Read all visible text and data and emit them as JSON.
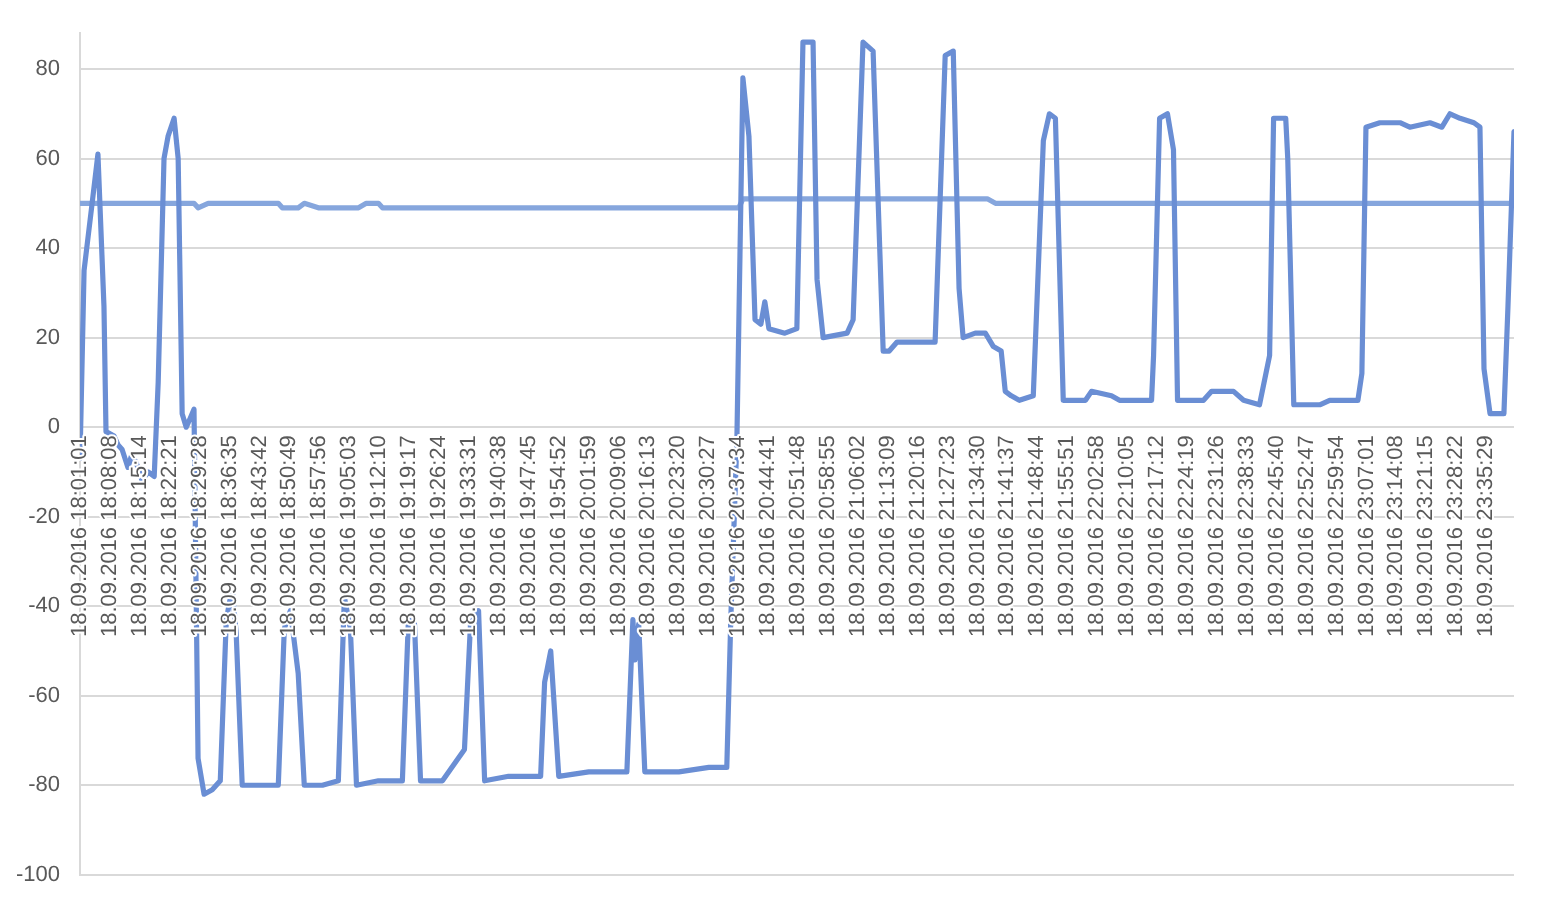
{
  "chart_data": {
    "type": "line",
    "series": [
      {
        "color": "#6a8ed4",
        "x": [
          "2016-09-18T18:01:01",
          "2016-09-18T18:01:59",
          "2016-09-18T18:03:54",
          "2016-09-18T18:05:17",
          "2016-09-18T18:06:43",
          "2016-09-18T18:07:12",
          "2016-09-18T18:09:07",
          "2016-09-18T18:10:05",
          "2016-09-18T18:11:02",
          "2016-09-18T18:12:25",
          "2016-09-18T18:13:23",
          "2016-09-18T18:14:49",
          "2016-09-18T18:15:47",
          "2016-09-18T18:17:13",
          "2016-09-18T18:18:40",
          "2016-09-18T18:19:37",
          "2016-09-18T18:21:00",
          "2016-09-18T18:21:58",
          "2016-09-18T18:23:24",
          "2016-09-18T18:24:22",
          "2016-09-18T18:25:19",
          "2016-09-18T18:26:17",
          "2016-09-18T18:27:14",
          "2016-09-18T18:28:08",
          "2016-09-18T18:29:06",
          "2016-09-18T18:30:32",
          "2016-09-18T18:32:28",
          "2016-09-18T18:34:23",
          "2016-09-18T18:35:49",
          "2016-09-18T18:37:12",
          "2016-09-18T18:38:10",
          "2016-09-18T18:39:36",
          "2016-09-18T18:43:26",
          "2016-09-18T18:48:11",
          "2016-09-18T18:49:37",
          "2016-09-18T18:51:04",
          "2016-09-18T18:52:55",
          "2016-09-18T18:54:22",
          "2016-09-18T18:58:41",
          "2016-09-18T19:02:28",
          "2016-09-18T19:03:54",
          "2016-09-18T19:05:20",
          "2016-09-18T19:06:47",
          "2016-09-18T19:12:00",
          "2016-09-18T19:17:42",
          "2016-09-18T19:19:08",
          "2016-09-18T19:20:35",
          "2016-09-18T19:22:01",
          "2016-09-18T19:27:14",
          "2016-09-18T19:32:28",
          "2016-09-18T19:33:54",
          "2016-09-18T19:35:49",
          "2016-09-18T19:37:16",
          "2016-09-18T19:42:58",
          "2016-09-18T19:50:35",
          "2016-09-18T19:51:32",
          "2016-09-18T19:52:59",
          "2016-09-18T19:54:54",
          "2016-09-18T20:02:02",
          "2016-09-18T20:11:06",
          "2016-09-18T20:12:32",
          "2016-09-18T20:13:01",
          "2016-09-18T20:13:55",
          "2016-09-18T20:15:22",
          "2016-09-18T20:23:28",
          "2016-09-18T20:30:36",
          "2016-09-18T20:34:52",
          "2016-09-18T20:35:49",
          "2016-09-18T20:37:16",
          "2016-09-18T20:38:42",
          "2016-09-18T20:40:08",
          "2016-09-18T20:41:35",
          "2016-09-18T20:42:58",
          "2016-09-18T20:43:55",
          "2016-09-18T20:44:53",
          "2016-09-18T20:48:40",
          "2016-09-18T20:51:32",
          "2016-09-18T20:52:59",
          "2016-09-18T20:55:23",
          "2016-09-18T20:56:20",
          "2016-09-18T20:57:47",
          "2016-09-18T21:03:29",
          "2016-09-18T21:04:55",
          "2016-09-18T21:07:16",
          "2016-09-18T21:09:40",
          "2016-09-18T21:12:04",
          "2016-09-18T21:13:30",
          "2016-09-18T21:15:22",
          "2016-09-18T21:24:25",
          "2016-09-18T21:26:49",
          "2016-09-18T21:28:44",
          "2016-09-18T21:30:07",
          "2016-09-18T21:31:05",
          "2016-09-18T21:33:58",
          "2016-09-18T21:36:22",
          "2016-09-18T21:38:17",
          "2016-09-18T21:40:08",
          "2016-09-18T21:41:06",
          "2016-09-18T21:42:32",
          "2016-09-18T21:44:28",
          "2016-09-18T21:47:46",
          "2016-09-18T21:50:10",
          "2016-09-18T21:51:36",
          "2016-09-18T21:53:02",
          "2016-09-18T21:54:54",
          "2016-09-18T22:00:11",
          "2016-09-18T22:01:37",
          "2016-09-18T22:06:22",
          "2016-09-18T22:08:17",
          "2016-09-18T22:15:54",
          "2016-09-18T22:16:23",
          "2016-09-18T22:17:49",
          "2016-09-18T22:19:41",
          "2016-09-18T22:21:07",
          "2016-09-18T22:22:05",
          "2016-09-18T22:28:16",
          "2016-09-18T22:30:11",
          "2016-09-18T22:35:24",
          "2016-09-18T22:37:48",
          "2016-09-18T22:41:35",
          "2016-09-18T22:43:59",
          "2016-09-18T22:44:56",
          "2016-09-18T22:47:49",
          "2016-09-18T22:48:18",
          "2016-09-18T22:49:44",
          "2016-09-18T22:55:55",
          "2016-09-18T22:58:16",
          "2016-09-18T23:04:59",
          "2016-09-18T23:05:56",
          "2016-09-18T23:06:54",
          "2016-09-18T23:10:12",
          "2016-09-18T23:15:00",
          "2016-09-18T23:17:20",
          "2016-09-18T23:22:08",
          "2016-09-18T23:24:58",
          "2016-09-18T23:26:53",
          "2016-09-18T23:29:17",
          "2016-09-18T23:32:35",
          "2016-09-18T23:34:01",
          "2016-09-18T23:34:59",
          "2016-09-18T23:36:25",
          "2016-09-18T23:39:43",
          "2016-09-18T23:40:41",
          "2016-09-18T23:42:07"
        ],
        "values": [
          -7,
          35,
          50,
          61,
          27,
          -1,
          -2,
          -4,
          -5,
          -9,
          -6,
          -9,
          -12,
          -10,
          -11,
          10,
          60,
          65,
          69,
          60,
          3,
          0,
          2,
          4,
          -74,
          -82,
          -81,
          -79,
          -43,
          -36,
          -46,
          -80,
          -80,
          -80,
          -45,
          -41,
          -55,
          -80,
          -80,
          -79,
          -38,
          -45,
          -80,
          -79,
          -79,
          -43,
          -44,
          -79,
          -79,
          -72,
          -44,
          -41,
          -79,
          -78,
          -78,
          -57,
          -50,
          -78,
          -77,
          -77,
          -43,
          -52,
          -44,
          -77,
          -77,
          -76,
          -76,
          -43,
          -3,
          78,
          65,
          24,
          23,
          28,
          22,
          21,
          22,
          86,
          86,
          33,
          20,
          21,
          24,
          86,
          84,
          17,
          17,
          19,
          19,
          83,
          84,
          31,
          20,
          21,
          21,
          18,
          17,
          8,
          7,
          6,
          7,
          64,
          70,
          69,
          6,
          6,
          8,
          7,
          6,
          6,
          16,
          69,
          70,
          62,
          6,
          6,
          8,
          8,
          6,
          5,
          16,
          69,
          69,
          60,
          5,
          5,
          6,
          6,
          12,
          67,
          68,
          68,
          67,
          68,
          67,
          70,
          69,
          68,
          67,
          13,
          3,
          3,
          27,
          66
        ]
      },
      {
        "color": "#86a6dd",
        "x": [
          "2016-09-18T18:01:01",
          "2016-09-18T18:28:08",
          "2016-09-18T18:29:06",
          "2016-09-18T18:31:30",
          "2016-09-18T18:48:11",
          "2016-09-18T18:49:08",
          "2016-09-18T18:52:55",
          "2016-09-18T18:54:22",
          "2016-09-18T18:57:43",
          "2016-09-18T19:07:16",
          "2016-09-18T19:09:07",
          "2016-09-18T19:12:00",
          "2016-09-18T19:12:58",
          "2016-09-18T20:37:44",
          "2016-09-18T20:38:42",
          "2016-09-18T21:36:50",
          "2016-09-18T21:38:46",
          "2016-09-18T23:42:07"
        ],
        "values": [
          50,
          50,
          49,
          50,
          50,
          49,
          49,
          50,
          49,
          49,
          50,
          50,
          49,
          49,
          51,
          51,
          50,
          50
        ]
      }
    ],
    "xlim": [
      "2016-09-18T18:01:01",
      "2016-09-18T23:42:07"
    ],
    "xticks": [
      {
        "value": "2016-09-18T18:01:01",
        "label": "18.09.2016 18:01:01"
      },
      {
        "value": "2016-09-18T18:08:08",
        "label": "18.09.2016 18:08:08"
      },
      {
        "value": "2016-09-18T18:15:14",
        "label": "18.09.2016 18:15:14"
      },
      {
        "value": "2016-09-18T18:22:21",
        "label": "18.09.2016 18:22:21"
      },
      {
        "value": "2016-09-18T18:29:28",
        "label": "18.09.2016 18:29:28"
      },
      {
        "value": "2016-09-18T18:36:35",
        "label": "18.09.2016 18:36:35"
      },
      {
        "value": "2016-09-18T18:43:42",
        "label": "18.09.2016 18:43:42"
      },
      {
        "value": "2016-09-18T18:50:49",
        "label": "18.09.2016 18:50:49"
      },
      {
        "value": "2016-09-18T18:57:56",
        "label": "18.09.2016 18:57:56"
      },
      {
        "value": "2016-09-18T19:05:03",
        "label": "18.09.2016 19:05:03"
      },
      {
        "value": "2016-09-18T19:12:10",
        "label": "18.09.2016 19:12:10"
      },
      {
        "value": "2016-09-18T19:19:17",
        "label": "18.09.2016 19:19:17"
      },
      {
        "value": "2016-09-18T19:26:24",
        "label": "18.09.2016 19:26:24"
      },
      {
        "value": "2016-09-18T19:33:31",
        "label": "18.09.2016 19:33:31"
      },
      {
        "value": "2016-09-18T19:40:38",
        "label": "18.09.2016 19:40:38"
      },
      {
        "value": "2016-09-18T19:47:45",
        "label": "18.09.2016 19:47:45"
      },
      {
        "value": "2016-09-18T19:54:52",
        "label": "18.09.2016 19:54:52"
      },
      {
        "value": "2016-09-18T20:01:59",
        "label": "18.09.2016 20:01:59"
      },
      {
        "value": "2016-09-18T20:09:06",
        "label": "18.09.2016 20:09:06"
      },
      {
        "value": "2016-09-18T20:16:13",
        "label": "18.09.2016 20:16:13"
      },
      {
        "value": "2016-09-18T20:23:20",
        "label": "18.09.2016 20:23:20"
      },
      {
        "value": "2016-09-18T20:30:27",
        "label": "18.09.2016 20:30:27"
      },
      {
        "value": "2016-09-18T20:37:34",
        "label": "18.09.2016 20:37:34"
      },
      {
        "value": "2016-09-18T20:44:41",
        "label": "18.09.2016 20:44:41"
      },
      {
        "value": "2016-09-18T20:51:48",
        "label": "18.09.2016 20:51:48"
      },
      {
        "value": "2016-09-18T20:58:55",
        "label": "18.09.2016 20:58:55"
      },
      {
        "value": "2016-09-18T21:06:02",
        "label": "18.09.2016 21:06:02"
      },
      {
        "value": "2016-09-18T21:13:09",
        "label": "18.09.2016 21:13:09"
      },
      {
        "value": "2016-09-18T21:20:16",
        "label": "18.09.2016 21:20:16"
      },
      {
        "value": "2016-09-18T21:27:23",
        "label": "18.09.2016 21:27:23"
      },
      {
        "value": "2016-09-18T21:34:30",
        "label": "18.09.2016 21:34:30"
      },
      {
        "value": "2016-09-18T21:41:37",
        "label": "18.09.2016 21:41:37"
      },
      {
        "value": "2016-09-18T21:48:44",
        "label": "18.09.2016 21:48:44"
      },
      {
        "value": "2016-09-18T21:55:51",
        "label": "18.09.2016 21:55:51"
      },
      {
        "value": "2016-09-18T22:02:58",
        "label": "18.09.2016 22:02:58"
      },
      {
        "value": "2016-09-18T22:10:05",
        "label": "18.09.2016 22:10:05"
      },
      {
        "value": "2016-09-18T22:17:12",
        "label": "18.09.2016 22:17:12"
      },
      {
        "value": "2016-09-18T22:24:19",
        "label": "18.09.2016 22:24:19"
      },
      {
        "value": "2016-09-18T22:31:26",
        "label": "18.09.2016 22:31:26"
      },
      {
        "value": "2016-09-18T22:38:33",
        "label": "18.09.2016 22:38:33"
      },
      {
        "value": "2016-09-18T22:45:40",
        "label": "18.09.2016 22:45:40"
      },
      {
        "value": "2016-09-18T22:52:47",
        "label": "18.09.2016 22:52:47"
      },
      {
        "value": "2016-09-18T22:59:54",
        "label": "18.09.2016 22:59:54"
      },
      {
        "value": "2016-09-18T23:07:01",
        "label": "18.09.2016 23:07:01"
      },
      {
        "value": "2016-09-18T23:14:08",
        "label": "18.09.2016 23:14:08"
      },
      {
        "value": "2016-09-18T23:21:15",
        "label": "18.09.2016 23:21:15"
      },
      {
        "value": "2016-09-18T23:28:22",
        "label": "18.09.2016 23:28:22"
      },
      {
        "value": "2016-09-18T23:35:29",
        "label": "18.09.2016 23:35:29"
      }
    ],
    "ylim": [
      -100,
      88
    ],
    "yticks": [
      -100,
      -80,
      -60,
      -40,
      -20,
      0,
      20,
      40,
      60,
      80
    ],
    "grid": "y",
    "legend": false,
    "marker": "none",
    "line_style": "solid"
  }
}
